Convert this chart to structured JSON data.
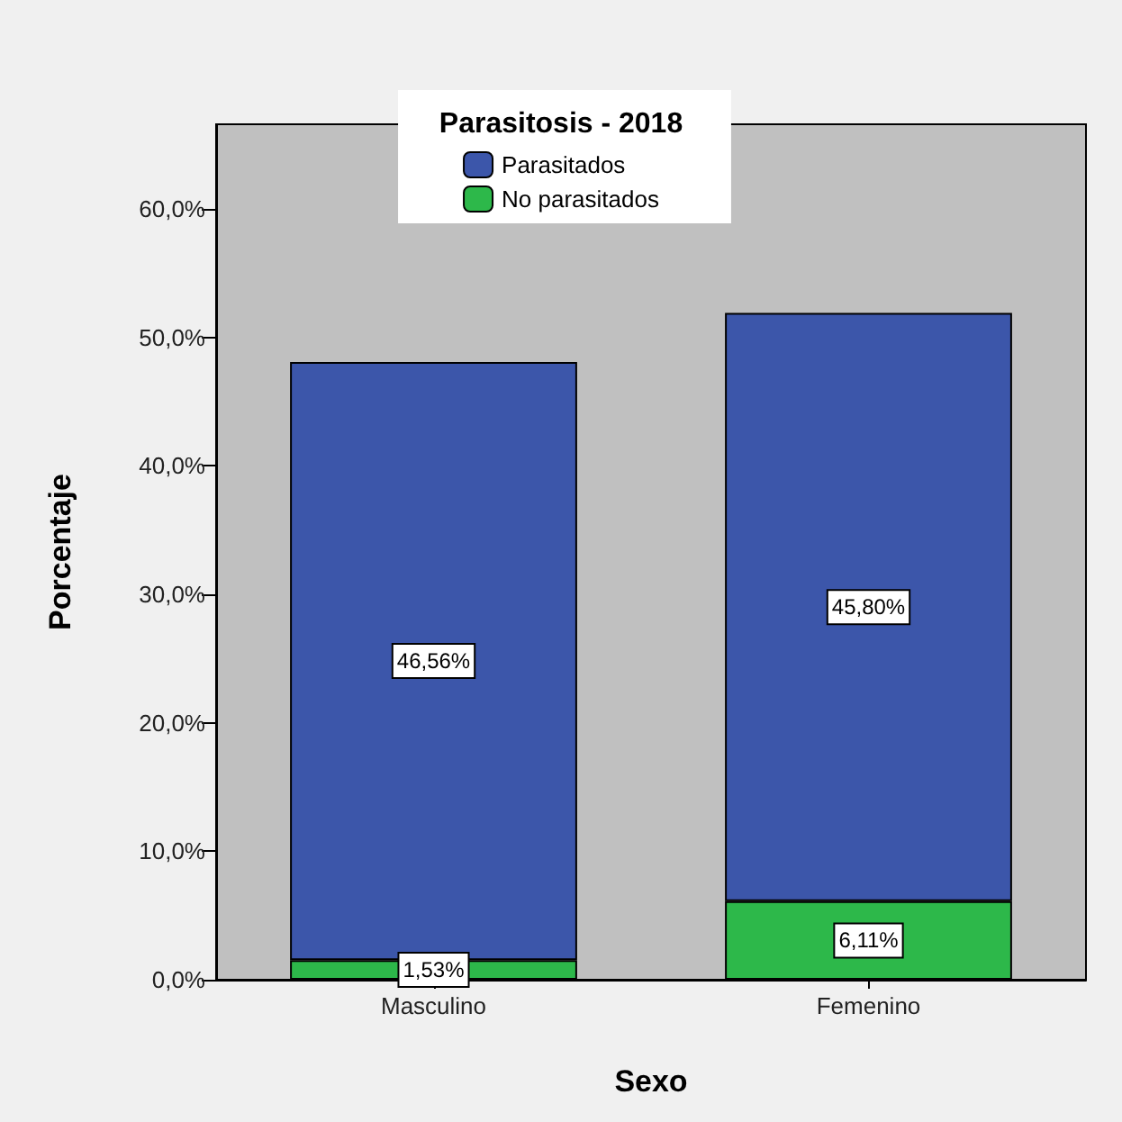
{
  "chart_data": {
    "type": "bar",
    "stacked": true,
    "legend_title": "Parasitosis - 2018",
    "xlabel": "Sexo",
    "ylabel": "Porcentaje",
    "categories": [
      "Masculino",
      "Femenino"
    ],
    "series": [
      {
        "name": "No parasitados",
        "color": "#2db84a",
        "values": [
          1.53,
          6.11
        ],
        "value_labels": [
          "1,53%",
          "6,11%"
        ]
      },
      {
        "name": "Parasitados",
        "color": "#3c56aa",
        "values": [
          46.56,
          45.8
        ],
        "value_labels": [
          "46,56%",
          "45,80%"
        ]
      }
    ],
    "ylim": [
      0,
      66.6
    ],
    "yticks": [
      {
        "value": 0,
        "label": "0,0%"
      },
      {
        "value": 10,
        "label": "10,0%"
      },
      {
        "value": 20,
        "label": "20,0%"
      },
      {
        "value": 30,
        "label": "30,0%"
      },
      {
        "value": 40,
        "label": "40,0%"
      },
      {
        "value": 50,
        "label": "50,0%"
      },
      {
        "value": 60,
        "label": "60,0%"
      }
    ],
    "grid": false,
    "legend": "top"
  }
}
